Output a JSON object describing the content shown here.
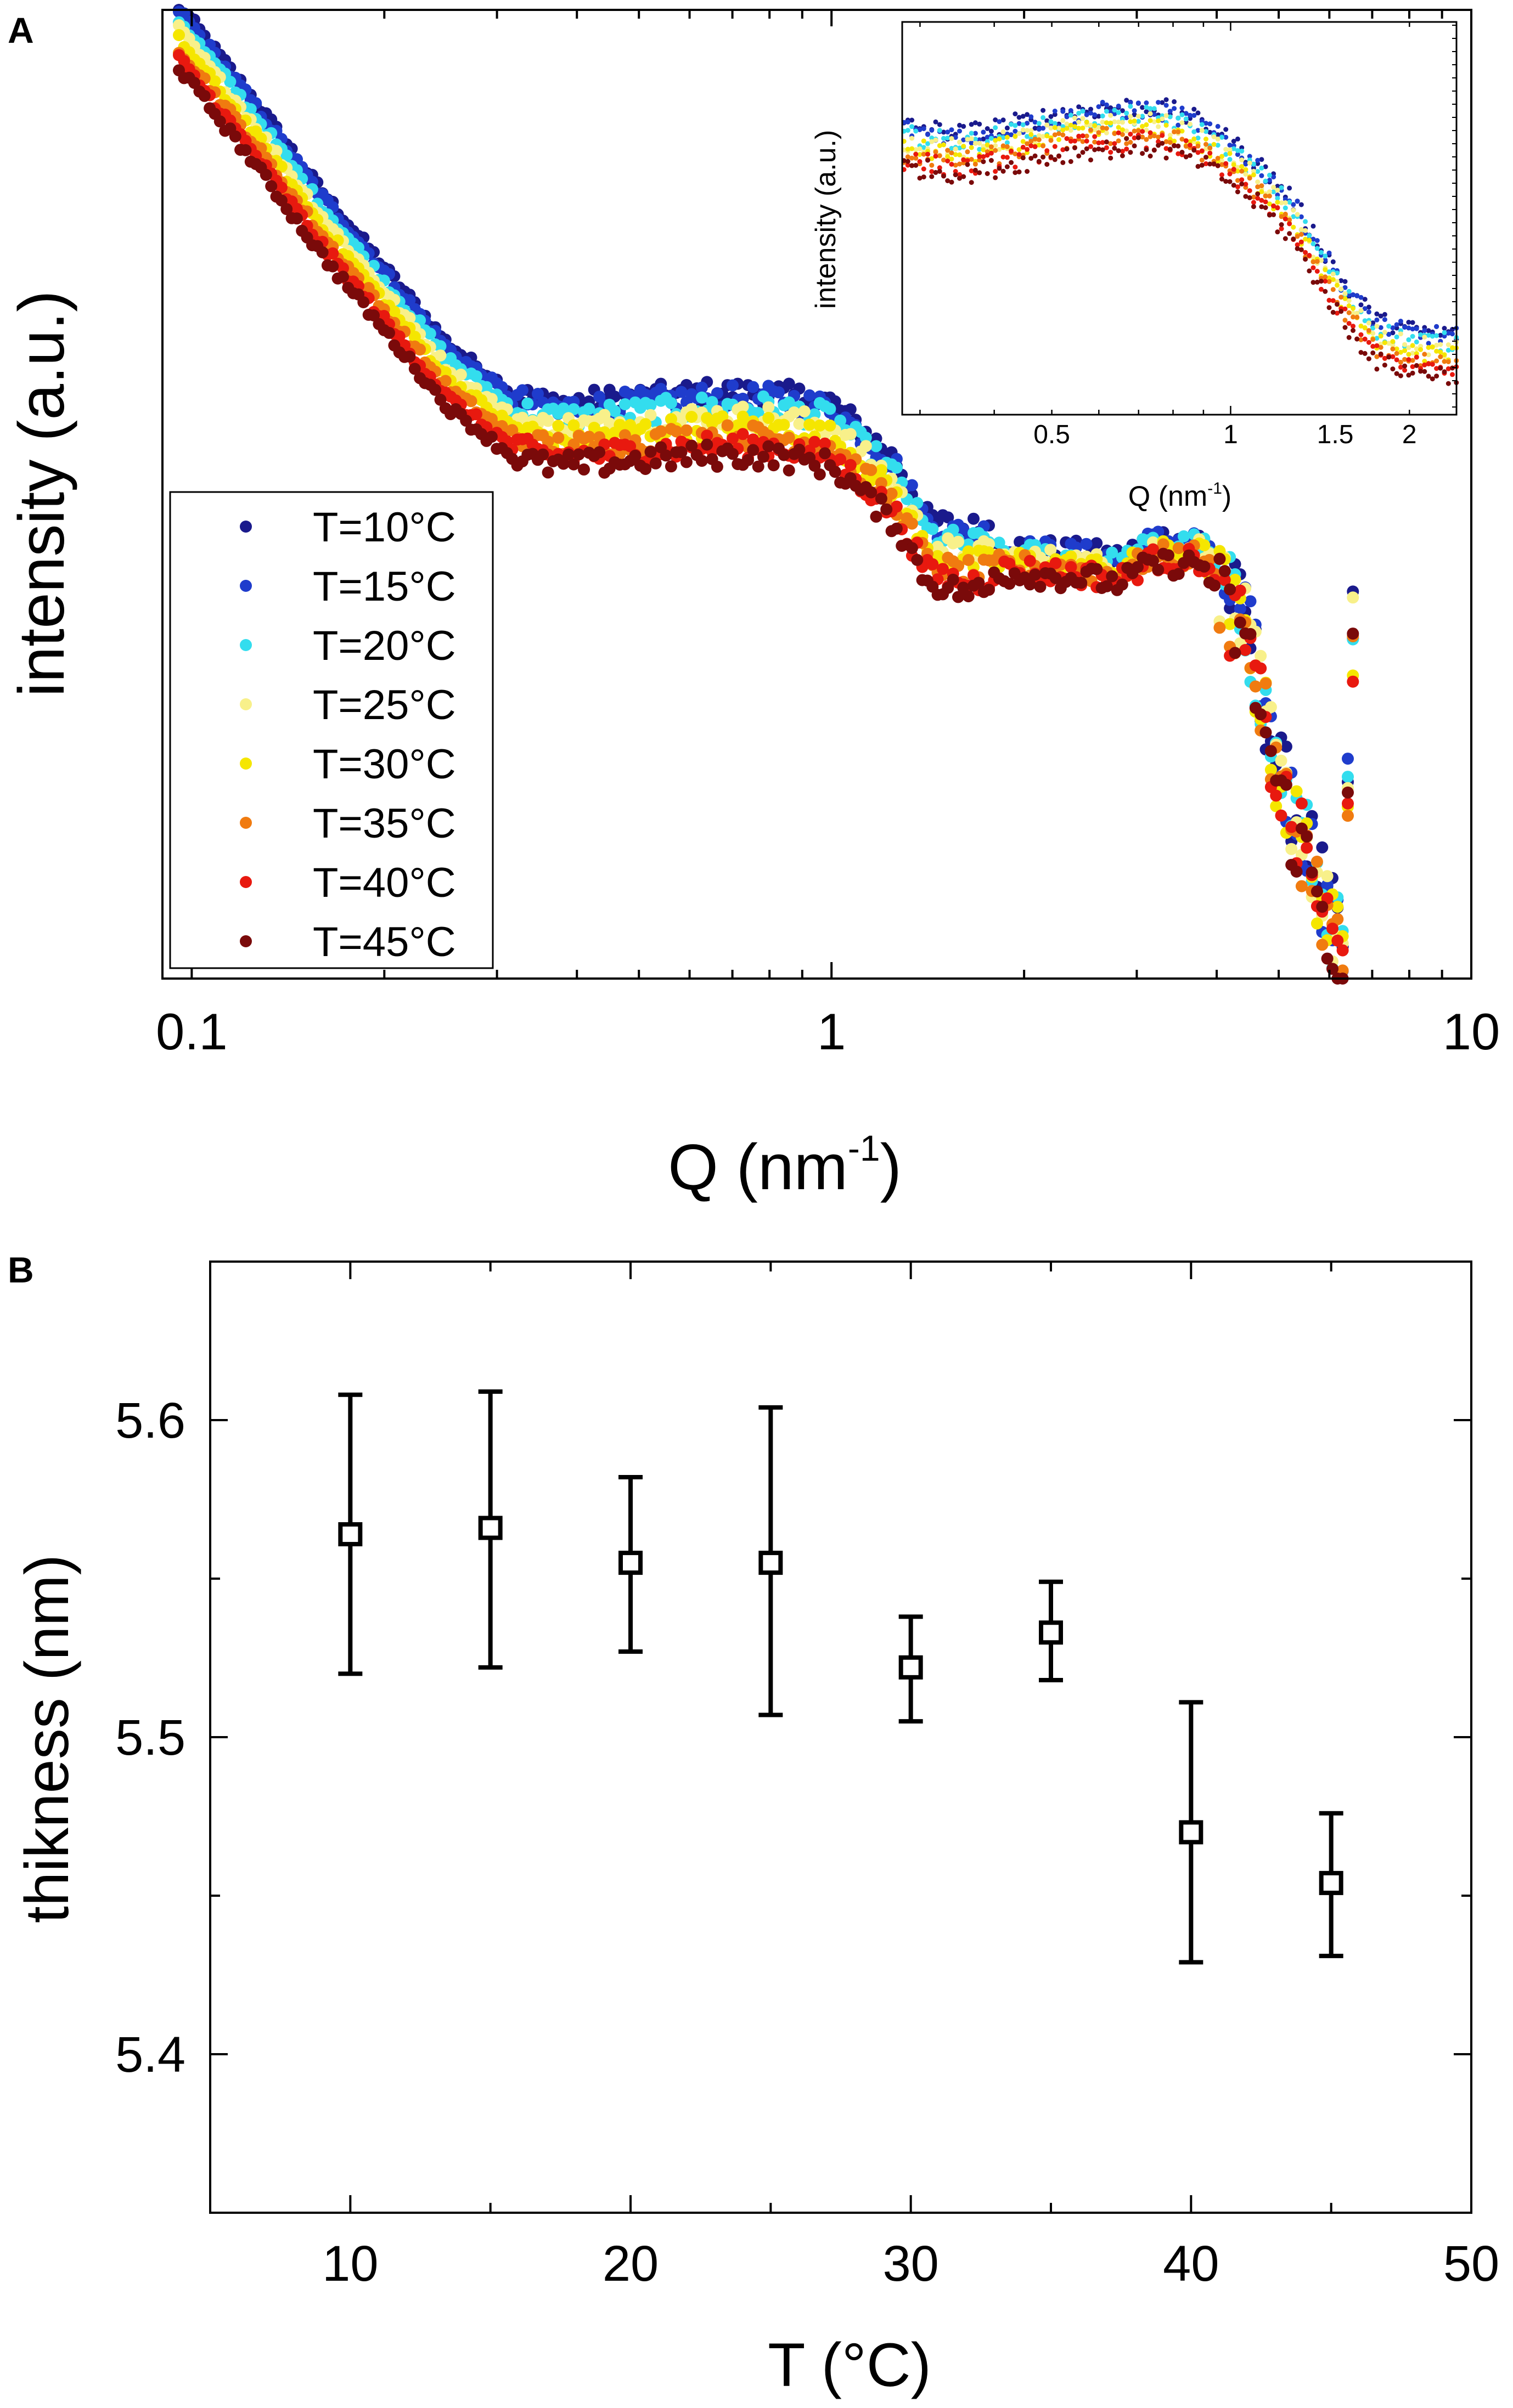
{
  "figure": {
    "panel_a_label": "A",
    "panel_b_label": "B"
  },
  "chart_data": [
    {
      "id": "A",
      "type": "scatter",
      "title": "",
      "xlabel": "Q (nm",
      "xlabel_sup": "-1",
      "xlabel_end": ")",
      "ylabel": "intensity (a.u.)",
      "xscale": "log",
      "xlim": [
        0.09,
        10
      ],
      "ylim": [
        0,
        1
      ],
      "xticks": [
        0.1,
        1,
        10
      ],
      "xtick_labels": [
        "0.1",
        "1",
        "10"
      ],
      "legend_position": "lower-left",
      "series": [
        {
          "name": "T=10°C",
          "color": "#1a1a8c",
          "offset": 0.035
        },
        {
          "name": "T=15°C",
          "color": "#1f3ccc",
          "offset": 0.03
        },
        {
          "name": "T=20°C",
          "color": "#33ddee",
          "offset": 0.02
        },
        {
          "name": "T=25°C",
          "color": "#f8f08a",
          "offset": 0.01
        },
        {
          "name": "T=30°C",
          "color": "#f5e600",
          "offset": 0.0
        },
        {
          "name": "T=35°C",
          "color": "#f07b10",
          "offset": -0.01
        },
        {
          "name": "T=40°C",
          "color": "#e8190f",
          "offset": -0.02
        },
        {
          "name": "T=45°C",
          "color": "#7a0a0a",
          "offset": -0.03
        }
      ],
      "curve_profile": {
        "logq": [
          -1.02,
          -0.9,
          -0.8,
          -0.7,
          -0.6,
          -0.5,
          -0.45,
          -0.4,
          -0.3,
          -0.2,
          -0.1,
          0,
          0.1,
          0.15,
          0.2,
          0.3,
          0.4,
          0.45,
          0.5,
          0.58,
          0.65,
          0.7,
          0.75,
          0.78,
          0.8,
          0.815
        ],
        "intensity": [
          0.97,
          0.87,
          0.78,
          0.7,
          0.62,
          0.57,
          0.56,
          0.56,
          0.565,
          0.57,
          0.57,
          0.56,
          0.5,
          0.44,
          0.43,
          0.43,
          0.425,
          0.42,
          0.44,
          0.44,
          0.35,
          0.2,
          0.12,
          0.05,
          0.02,
          0.35
        ]
      },
      "inset": {
        "xlabel": "Q (nm",
        "xlabel_sup": "-1",
        "xlabel_end": ")",
        "ylabel": "intensity (a.u.)",
        "xscale": "log",
        "xlim": [
          0.28,
          2.4
        ],
        "xticks": [
          0.5,
          1,
          1.5,
          2
        ],
        "xtick_labels": [
          "0.5",
          "1",
          "1.5",
          "2"
        ],
        "curve_profile": {
          "logq": [
            -0.55,
            -0.45,
            -0.35,
            -0.25,
            -0.15,
            -0.1,
            -0.05,
            0.0,
            0.05,
            0.1,
            0.15,
            0.2,
            0.25,
            0.3,
            0.38
          ],
          "intensity": [
            0.68,
            0.66,
            0.69,
            0.72,
            0.73,
            0.72,
            0.69,
            0.64,
            0.58,
            0.5,
            0.38,
            0.26,
            0.18,
            0.16,
            0.15
          ]
        }
      }
    },
    {
      "id": "B",
      "type": "scatter",
      "title": "",
      "xlabel": "T (°C)",
      "ylabel": "thikness (nm)",
      "xlim": [
        5,
        50
      ],
      "ylim": [
        5.35,
        5.65
      ],
      "xticks": [
        10,
        20,
        30,
        40,
        50
      ],
      "xtick_labels": [
        "10",
        "20",
        "30",
        "40",
        "50"
      ],
      "yticks": [
        5.4,
        5.5,
        5.6
      ],
      "ytick_labels": [
        "5.4",
        "5.5",
        "5.6"
      ],
      "x": [
        10,
        15,
        20,
        25,
        30,
        35,
        40,
        45
      ],
      "y": [
        5.564,
        5.566,
        5.555,
        5.555,
        5.522,
        5.533,
        5.47,
        5.454
      ],
      "yerr_low": [
        5.52,
        5.522,
        5.527,
        5.507,
        5.505,
        5.518,
        5.429,
        5.431
      ],
      "yerr_high": [
        5.608,
        5.609,
        5.582,
        5.604,
        5.538,
        5.549,
        5.511,
        5.476
      ]
    }
  ]
}
